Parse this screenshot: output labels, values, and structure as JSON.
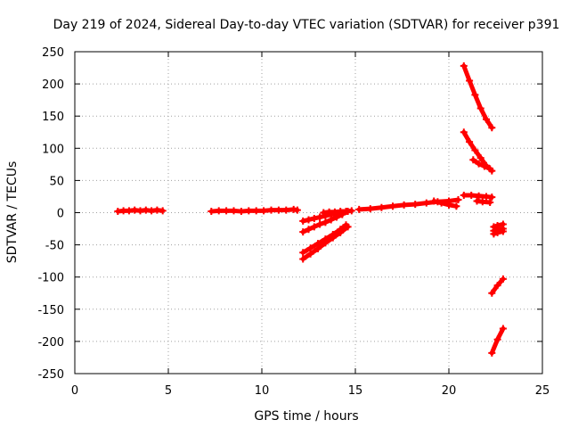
{
  "chart_data": {
    "type": "scatter",
    "title": "Day 219 of 2024, Sidereal Day-to-day VTEC variation (SDTVAR) for receiver p391",
    "xlabel": "GPS time / hours",
    "ylabel": "SDTVAR / TECUs",
    "xlim": [
      0,
      25
    ],
    "ylim": [
      -250,
      250
    ],
    "xticks": [
      0,
      5,
      10,
      15,
      20,
      25
    ],
    "yticks": [
      -250,
      -200,
      -150,
      -100,
      -50,
      0,
      50,
      100,
      150,
      200,
      250
    ],
    "grid": true,
    "legend": "none",
    "marker": "plus",
    "color": "#ff0000",
    "series": [
      {
        "x": [
          2.3,
          2.6,
          2.9,
          3.2,
          3.5,
          3.8,
          4.1,
          4.4,
          4.7
        ],
        "y": [
          2,
          3,
          3,
          4,
          3,
          4,
          3,
          4,
          3
        ]
      },
      {
        "x": [
          7.3,
          7.7,
          8.1,
          8.5,
          8.9,
          9.3,
          9.7,
          10.1,
          10.5,
          10.9,
          11.3,
          11.7,
          11.9
        ],
        "y": [
          2,
          3,
          3,
          3,
          2,
          3,
          3,
          3,
          4,
          4,
          4,
          5,
          4
        ]
      },
      {
        "x": [
          12.2,
          12.5,
          12.8,
          13.1,
          13.4,
          13.7,
          14.0,
          14.3,
          14.6
        ],
        "y": [
          -13,
          -11,
          -9,
          -7,
          -5,
          -3,
          -1,
          0,
          2
        ]
      },
      {
        "x": [
          12.2,
          12.5,
          12.8,
          13.1,
          13.4,
          13.7,
          14.0,
          14.3
        ],
        "y": [
          -30,
          -26,
          -22,
          -18,
          -15,
          -11,
          -7,
          -3
        ]
      },
      {
        "x": [
          12.2,
          12.6,
          13.0,
          13.4,
          13.8,
          14.2,
          14.5
        ],
        "y": [
          -62,
          -55,
          -48,
          -41,
          -34,
          -26,
          -19
        ]
      },
      {
        "x": [
          12.2,
          12.6,
          13.0,
          13.4,
          13.8,
          14.2,
          14.6
        ],
        "y": [
          -72,
          -64,
          -56,
          -47,
          -39,
          -31,
          -22
        ]
      },
      {
        "x": [
          13.3,
          13.6,
          13.9,
          14.2,
          14.5,
          14.8
        ],
        "y": [
          0,
          1,
          1,
          2,
          2,
          3
        ]
      },
      {
        "x": [
          15.2,
          15.8,
          16.4,
          17.0,
          17.6,
          18.2,
          18.8,
          19.4,
          20.0,
          20.5
        ],
        "y": [
          5,
          6,
          8,
          10,
          12,
          13,
          15,
          17,
          18,
          20
        ]
      },
      {
        "x": [
          19.2,
          19.6,
          20.0,
          20.4
        ],
        "y": [
          18,
          15,
          12,
          10
        ]
      },
      {
        "x": [
          20.8,
          21.2,
          21.6,
          22.0,
          22.3
        ],
        "y": [
          27,
          27,
          26,
          25,
          24
        ]
      },
      {
        "x": [
          21.5,
          21.8,
          22.2
        ],
        "y": [
          18,
          17,
          16
        ]
      },
      {
        "x": [
          20.8,
          21.1,
          21.4,
          21.7,
          22.0,
          22.3
        ],
        "y": [
          228,
          205,
          183,
          162,
          145,
          132
        ]
      },
      {
        "x": [
          20.8,
          21.1,
          21.4,
          21.7,
          22.0,
          22.3
        ],
        "y": [
          125,
          110,
          97,
          85,
          73,
          65
        ]
      },
      {
        "x": [
          21.3,
          21.6,
          21.9,
          22.2
        ],
        "y": [
          82,
          76,
          72,
          68
        ]
      },
      {
        "x": [
          22.4,
          22.6,
          22.9
        ],
        "y": [
          -22,
          -20,
          -18
        ]
      },
      {
        "x": [
          22.4,
          22.6,
          22.9
        ],
        "y": [
          -33,
          -31,
          -29
        ]
      },
      {
        "x": [
          22.4,
          22.6,
          22.9
        ],
        "y": [
          -28,
          -27,
          -25
        ]
      },
      {
        "x": [
          22.3,
          22.6,
          22.9
        ],
        "y": [
          -125,
          -113,
          -103
        ]
      },
      {
        "x": [
          22.3,
          22.6,
          22.9
        ],
        "y": [
          -218,
          -197,
          -180
        ]
      }
    ]
  }
}
